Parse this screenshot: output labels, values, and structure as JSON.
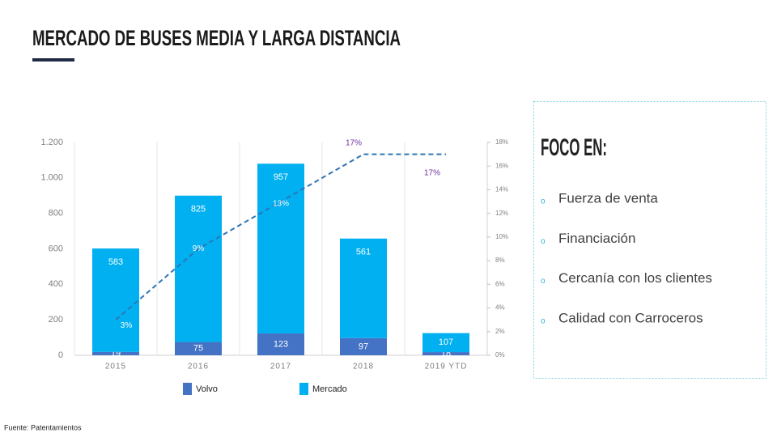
{
  "header": {
    "title": "MERCADO DE BUSES MEDIA Y LARGA DISTANCIA"
  },
  "chart_data": {
    "type": "bar",
    "stacked": true,
    "categories": [
      "2015",
      "2016",
      "2017",
      "2018",
      "2019 YTD"
    ],
    "series": [
      {
        "name": "Volvo",
        "color": "#4472c4",
        "values": [
          19,
          75,
          123,
          97,
          18
        ]
      },
      {
        "name": "Mercado",
        "color": "#00b0f0",
        "values": [
          583,
          825,
          957,
          561,
          107
        ]
      },
      {
        "type": "line",
        "axis": "y2",
        "color": "#2e75b6",
        "values": [
          3,
          9,
          13,
          17,
          17
        ],
        "value_labels": [
          "3%",
          "9%",
          "13%",
          "17%",
          "17%"
        ]
      }
    ],
    "ylim": [
      0,
      1200
    ],
    "yticks": [
      0,
      200,
      400,
      600,
      800,
      {
        "value": 1000,
        "label": "1.000"
      },
      {
        "value": 1200,
        "label": "1.200"
      }
    ],
    "y2lim": [
      0,
      18
    ],
    "y2ticks": [
      {
        "value": 0,
        "label": "0%"
      },
      {
        "value": 2,
        "label": "2%"
      },
      {
        "value": 4,
        "label": "4%"
      },
      {
        "value": 6,
        "label": "6%"
      },
      {
        "value": 8,
        "label": "8%"
      },
      {
        "value": 10,
        "label": "10%"
      },
      {
        "value": 12,
        "label": "12%"
      },
      {
        "value": 14,
        "label": "14%"
      },
      {
        "value": 16,
        "label": "16%"
      },
      {
        "value": 18,
        "label": "18%"
      }
    ],
    "legend": "bottom"
  },
  "panel": {
    "title": "FOCO EN:",
    "items": [
      "Fuerza de venta",
      "Financiación",
      "Cercanía con los clientes",
      "Calidad con Carroceros"
    ]
  },
  "footer": {
    "source": "Fuente: Patentamientos"
  }
}
